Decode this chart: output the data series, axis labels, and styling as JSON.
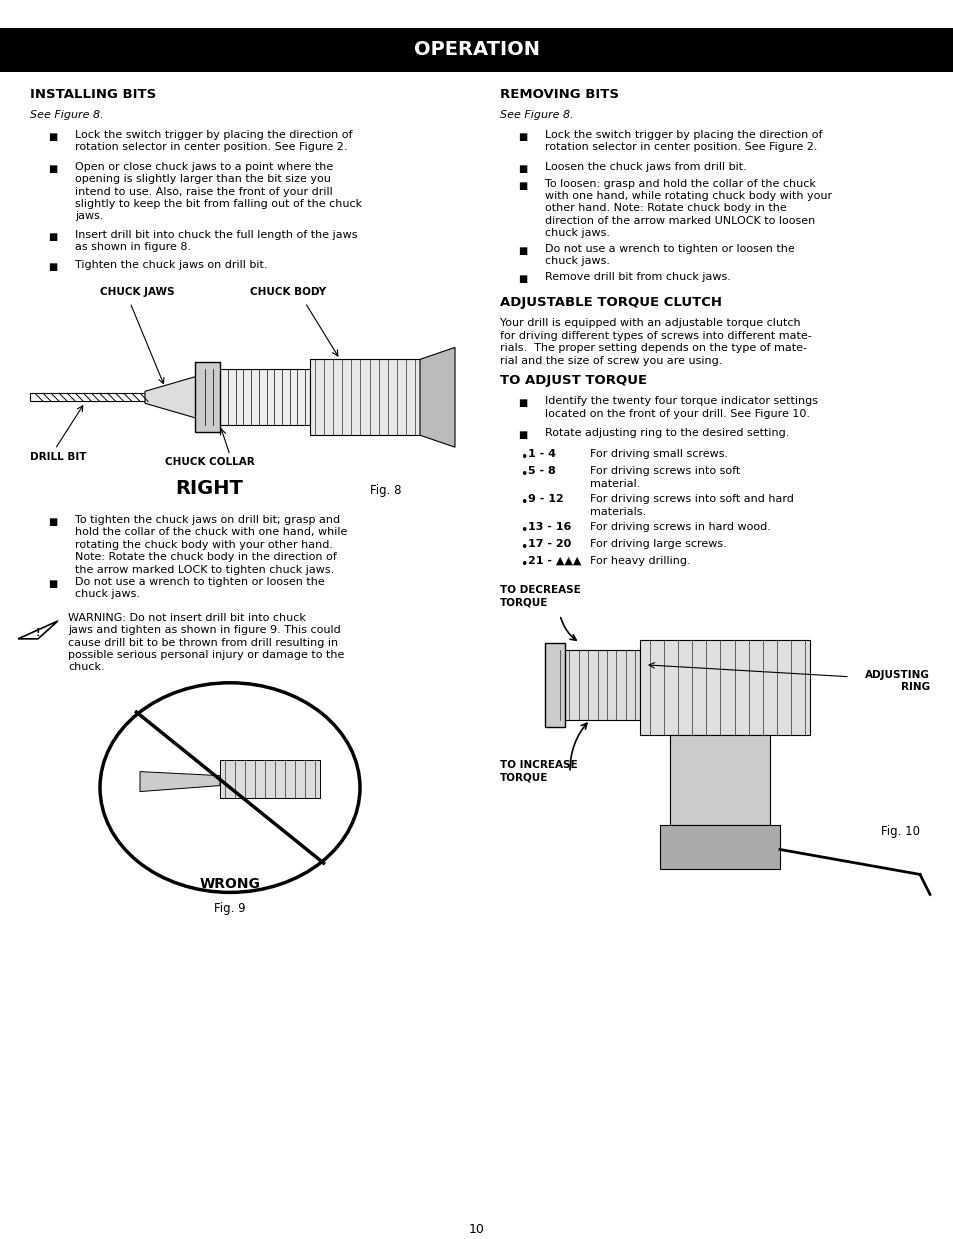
{
  "title": "OPERATION",
  "title_bg": "#000000",
  "title_color": "#ffffff",
  "page_bg": "#ffffff",
  "page_number": "10",
  "installing_bits_title": "INSTALLING BITS",
  "installing_bits_subtitle": "See Figure 8.",
  "installing_bits_bullets": [
    "Lock the switch trigger by placing the direction of\nrotation selector in center position. See Figure 2.",
    "Open or close chuck jaws to a point where the\nopening is slightly larger than the bit size you\nintend to use. Also, raise the front of your drill\nslightly to keep the bit from falling out of the chuck\njaws.",
    "Insert drill bit into chuck the full length of the jaws\nas shown in figure 8.",
    "Tighten the chuck jaws on drill bit."
  ],
  "installing_bits_bullets2": [
    "To tighten the chuck jaws on drill bit; grasp and\nhold the collar of the chuck with one hand, while\nrotating the chuck body with your other hand.\nNote: Rotate the chuck body in the direction of\nthe arrow marked LOCK to tighten chuck jaws.",
    "Do not use a wrench to tighten or loosen the\nchuck jaws."
  ],
  "warning_text": "WARNING: Do not insert drill bit into chuck\njaws and tighten as shown in figure 9. This could\ncause drill bit to be thrown from drill resulting in\npossible serious personal injury or damage to the\nchuck.",
  "removing_bits_title": "REMOVING BITS",
  "removing_bits_subtitle": "See Figure 8.",
  "removing_bits_bullets": [
    "Lock the switch trigger by placing the direction of\nrotation selector in center position. See Figure 2.",
    "Loosen the chuck jaws from drill bit.",
    "To loosen: grasp and hold the collar of the chuck\nwith one hand, while rotating chuck body with your\nother hand. Note: Rotate chuck body in the\ndirection of the arrow marked UNLOCK to loosen\nchuck jaws.",
    "Do not use a wrench to tighten or loosen the\nchuck jaws.",
    "Remove drill bit from chuck jaws."
  ],
  "adjustable_torque_title": "ADJUSTABLE TORQUE CLUTCH",
  "adjustable_torque_body": "Your drill is equipped with an adjustable torque clutch\nfor driving different types of screws into different mate-\nrials.  The proper setting depends on the type of mate-\nrial and the size of screw you are using.",
  "to_adjust_title": "TO ADJUST TORQUE",
  "to_adjust_bullets": [
    "Identify the twenty four torque indicator settings\nlocated on the front of your drill. See Figure 10.",
    "Rotate adjusting ring to the desired setting."
  ],
  "torque_settings": [
    [
      "1 - 4",
      "For driving small screws."
    ],
    [
      "5 - 8",
      "For driving screws into soft\nmaterial."
    ],
    [
      "9 - 12",
      "For driving screws into soft and hard\nmaterials."
    ],
    [
      "13 - 16",
      "For driving screws in hard wood."
    ],
    [
      "17 - 20",
      "For driving large screws."
    ],
    [
      "21 - ▲▲▲",
      "For heavy drilling."
    ]
  ],
  "fig8_caption": "Fig. 8",
  "fig9_caption": "Fig. 9",
  "fig10_caption": "Fig. 10",
  "fs_body": 8.0,
  "fs_title_section": 9.5,
  "fs_subtitle": 8.0
}
